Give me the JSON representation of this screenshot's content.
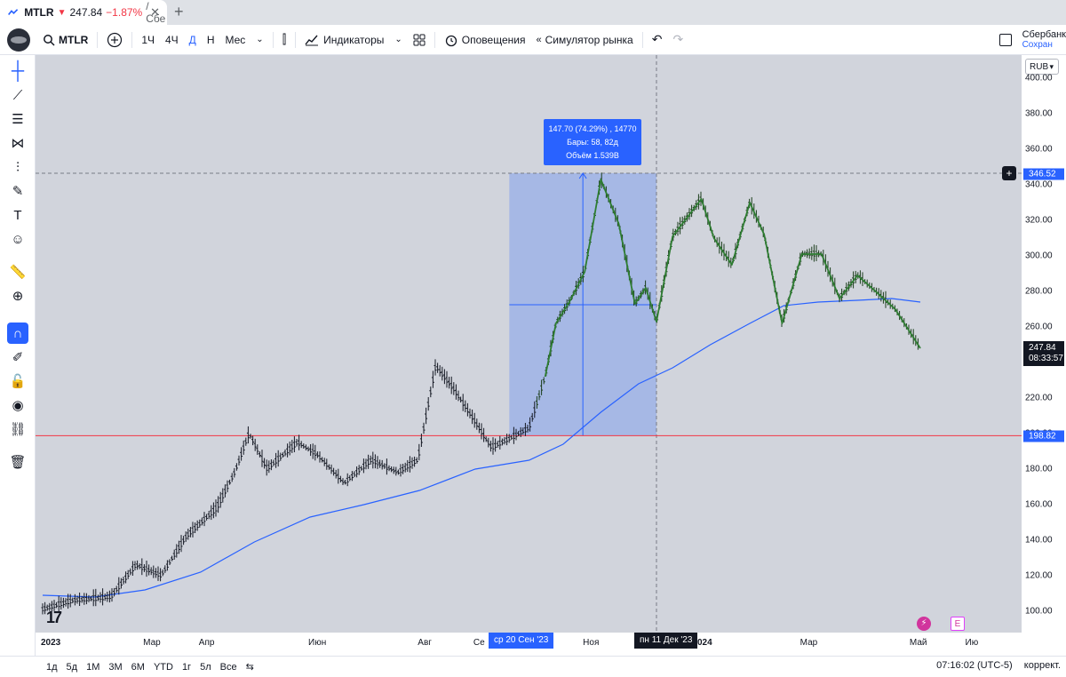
{
  "tab": {
    "symbol": "MTLR",
    "arrow": "▼",
    "price": "247.84",
    "change": "−1.87%",
    "rest": "/ Сбе"
  },
  "toolbar": {
    "symbol": "MTLR",
    "intervals": [
      "1Ч",
      "4Ч",
      "Д",
      "Н",
      "Мес"
    ],
    "active_interval": "Д",
    "indicators": "Индикаторы",
    "alerts": "Оповещения",
    "replay": "Симулятор рынка",
    "user_name": "Сбербанк",
    "user_sub": "Сохран"
  },
  "price_axis": {
    "currency": "RUB",
    "ticks": [
      "400.00",
      "380.00",
      "360.00",
      "340.00",
      "320.00",
      "300.00",
      "280.00",
      "260.00",
      "240.00",
      "220.00",
      "200.00",
      "180.00",
      "160.00",
      "140.00",
      "120.00",
      "100.00"
    ],
    "cursor_price": "346.52",
    "last_price": "247.84",
    "countdown": "08:33:57",
    "line_price": "198.82"
  },
  "time_axis": {
    "ticks": [
      "2023",
      "Мар",
      "Апр",
      "Июн",
      "Авг",
      "Се",
      "Ноя",
      "2024",
      "Мар",
      "Май",
      "Ию"
    ],
    "range_start": "ср 20 Сен '23",
    "range_end": "пн 11 Дек '23"
  },
  "measure": {
    "line1": "147.70 (74.29%) , 14770",
    "line2": "Бары: 58, 82д",
    "line3": "Объём 1.539B"
  },
  "events": {
    "earnings": "E"
  },
  "bottom": {
    "ranges": [
      "1д",
      "5д",
      "1М",
      "3М",
      "6М",
      "YTD",
      "1г",
      "5л",
      "Все"
    ],
    "clock": "07:16:02 (UTC-5)",
    "adj": "коррект."
  },
  "chart_data": {
    "type": "line",
    "symbol": "MTLR",
    "series": [
      {
        "x": [
          "2023-01-03",
          "2023-01-20",
          "2023-02-10",
          "2023-02-24",
          "2023-03-10",
          "2023-03-24",
          "2023-04-10",
          "2023-04-20",
          "2023-04-28",
          "2023-05-08",
          "2023-05-25",
          "2023-06-05",
          "2023-06-20",
          "2023-07-05",
          "2023-07-20",
          "2023-07-31",
          "2023-08-10",
          "2023-08-20",
          "2023-08-31",
          "2023-09-10",
          "2023-09-20",
          "2023-10-01",
          "2023-10-10",
          "2023-10-16",
          "2023-10-24",
          "2023-11-01",
          "2023-11-10",
          "2023-11-20",
          "2023-11-29",
          "2023-12-05",
          "2023-12-11",
          "2023-12-20",
          "2024-01-05",
          "2024-01-12",
          "2024-01-22",
          "2024-02-01",
          "2024-02-09",
          "2024-02-19",
          "2024-03-01",
          "2024-03-12",
          "2024-03-22",
          "2024-04-01",
          "2024-04-10",
          "2024-04-22",
          "2024-05-06"
        ],
        "values": [
          101,
          106,
          108,
          126,
          120,
          142,
          158,
          178,
          200,
          180,
          195,
          188,
          172,
          185,
          178,
          185,
          238,
          225,
          208,
          192,
          197,
          203,
          232,
          262,
          275,
          291,
          343,
          318,
          273,
          282,
          263,
          311,
          332,
          310,
          295,
          330,
          312,
          262,
          301,
          301,
          276,
          289,
          281,
          270,
          248
        ]
      },
      {
        "x": [
          "2023-01-03",
          "2023-02-01",
          "2023-03-01",
          "2023-04-01",
          "2023-05-01",
          "2023-06-01",
          "2023-07-01",
          "2023-08-01",
          "2023-09-01",
          "2023-10-01",
          "2023-10-20",
          "2023-11-10",
          "2023-12-01",
          "2023-12-20",
          "2024-01-10",
          "2024-02-01",
          "2024-02-20",
          "2024-03-10",
          "2024-04-01",
          "2024-04-20",
          "2024-05-06"
        ],
        "values": [
          109,
          108,
          112,
          122,
          139,
          153,
          160,
          168,
          180,
          185,
          194,
          212,
          228,
          237,
          250,
          262,
          272,
          274,
          275,
          276,
          274
        ]
      }
    ],
    "horizontal_line": 198.82,
    "measure_range": {
      "x": [
        "2023-09-20",
        "2023-12-11"
      ],
      "y": [
        198.82,
        346.52
      ]
    },
    "ylim": [
      95,
      410
    ],
    "grid": false
  }
}
